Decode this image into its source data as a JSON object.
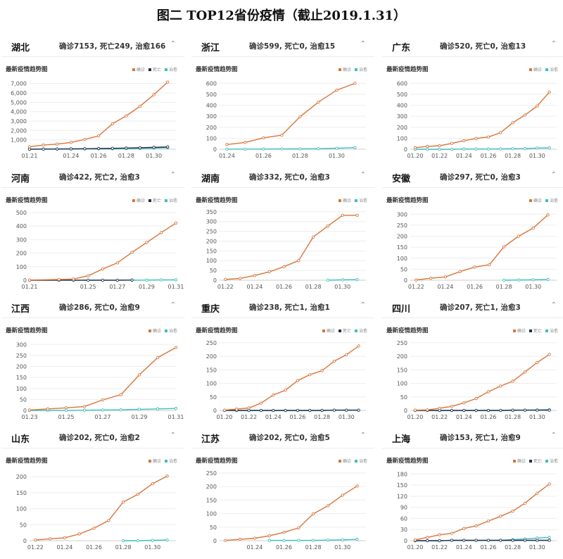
{
  "title": "图二 TOP12省份疫情（截止2019.1.31）",
  "subtitle": "最新疫情趋势图",
  "legend_labels": {
    "confirmed": "确诊",
    "deaths": "死亡",
    "cured": "治愈"
  },
  "colors": {
    "confirmed": "#d9743a",
    "deaths": "#1e2f4f",
    "cured": "#3dbfbf"
  },
  "collapse_icon": "chevron-up-icon",
  "chart_data": [
    {
      "type": "line",
      "province": "湖北",
      "stats": "确诊7153, 死亡249, 治愈166",
      "x_ticks": [
        "01.21",
        "01.24",
        "01.26",
        "01.28",
        "01.30"
      ],
      "y_ticks": [
        "1,000",
        "2,000",
        "3,000",
        "4,000",
        "5,000",
        "6,000",
        "7,000"
      ],
      "ylim": [
        0,
        7500
      ],
      "x_range": [
        21,
        31.6
      ],
      "legend": [
        "confirmed",
        "deaths",
        "cured"
      ],
      "series": [
        {
          "key": "confirmed",
          "x": [
            21,
            22,
            23,
            24,
            25,
            26,
            27,
            28,
            29,
            30,
            31
          ],
          "y": [
            270,
            444,
            549,
            729,
            1052,
            1423,
            2714,
            3554,
            4586,
            5806,
            7153
          ]
        },
        {
          "key": "deaths",
          "x": [
            21,
            22,
            23,
            24,
            25,
            26,
            27,
            28,
            29,
            30,
            31
          ],
          "y": [
            6,
            17,
            24,
            39,
            52,
            76,
            100,
            125,
            162,
            204,
            249
          ]
        },
        {
          "key": "cured",
          "x": [
            21,
            22,
            23,
            24,
            25,
            26,
            27,
            28,
            29,
            30,
            31
          ],
          "y": [
            25,
            28,
            31,
            32,
            42,
            44,
            47,
            80,
            90,
            116,
            166
          ]
        }
      ]
    },
    {
      "type": "line",
      "province": "浙江",
      "stats": "确诊599, 死亡0, 治愈15",
      "x_ticks": [
        "01.24",
        "01.26",
        "01.28",
        "01.30"
      ],
      "y_ticks": [
        "0",
        "100",
        "200",
        "300",
        "400",
        "500",
        "600"
      ],
      "ylim": [
        0,
        640
      ],
      "x_range": [
        23.6,
        31.6
      ],
      "legend": [
        "confirmed",
        "cured"
      ],
      "series": [
        {
          "key": "confirmed",
          "x": [
            24,
            25,
            26,
            27,
            28,
            29,
            30,
            31
          ],
          "y": [
            43,
            62,
            104,
            128,
            296,
            428,
            537,
            599
          ]
        },
        {
          "key": "cured",
          "x": [
            24,
            25,
            26,
            27,
            28,
            29,
            30,
            31
          ],
          "y": [
            1,
            1,
            2,
            3,
            3,
            5,
            9,
            15
          ]
        }
      ]
    },
    {
      "type": "line",
      "province": "广东",
      "stats": "确诊520, 死亡0, 治愈13",
      "x_ticks": [
        "01.20",
        "01.22",
        "01.24",
        "01.26",
        "01.28",
        "01.30"
      ],
      "y_ticks": [
        "0",
        "100",
        "200",
        "300",
        "400",
        "500",
        "600"
      ],
      "ylim": [
        0,
        640
      ],
      "x_range": [
        19.6,
        31.6
      ],
      "legend": [
        "confirmed",
        "cured"
      ],
      "series": [
        {
          "key": "confirmed",
          "x": [
            20,
            21,
            22,
            23,
            24,
            25,
            26,
            27,
            28,
            29,
            30,
            31
          ],
          "y": [
            14,
            26,
            32,
            53,
            78,
            98,
            111,
            151,
            241,
            311,
            393,
            520
          ]
        },
        {
          "key": "cured",
          "x": [
            20,
            21,
            22,
            23,
            24,
            25,
            26,
            27,
            28,
            29,
            30,
            31
          ],
          "y": [
            0,
            0,
            0,
            0,
            2,
            2,
            2,
            3,
            5,
            6,
            11,
            13
          ]
        }
      ]
    },
    {
      "type": "line",
      "province": "河南",
      "stats": "确诊422, 死亡2, 治愈3",
      "x_ticks": [
        "01.21",
        "01.25",
        "01.27",
        "01.29",
        "01.31"
      ],
      "y_ticks": [
        "0",
        "100",
        "200",
        "300",
        "400",
        "500"
      ],
      "ylim": [
        0,
        520
      ],
      "x_range": [
        21,
        31
      ],
      "legend": [
        "confirmed",
        "deaths",
        "cured"
      ],
      "series": [
        {
          "key": "confirmed",
          "x": [
            21,
            23,
            24,
            25,
            26,
            27,
            28,
            29,
            30,
            31
          ],
          "y": [
            1,
            5,
            9,
            32,
            83,
            128,
            206,
            278,
            352,
            422
          ]
        },
        {
          "key": "deaths",
          "x": [
            21,
            23,
            24,
            25,
            26,
            27,
            28
          ],
          "y": [
            0,
            0,
            0,
            0,
            0,
            0,
            1
          ]
        },
        {
          "key": "cured",
          "x": [
            28,
            29,
            30,
            31
          ],
          "y": [
            0,
            1,
            2,
            3
          ]
        }
      ]
    },
    {
      "type": "line",
      "province": "湖南",
      "stats": "确诊332, 死亡0, 治愈3",
      "x_ticks": [
        "01.22",
        "01.24",
        "01.26",
        "01.28",
        "01.30"
      ],
      "y_ticks": [
        "0",
        "50",
        "100",
        "150",
        "200",
        "250",
        "300",
        "350"
      ],
      "ylim": [
        0,
        360
      ],
      "x_range": [
        21.6,
        31.6
      ],
      "legend": [
        "confirmed",
        "cured"
      ],
      "series": [
        {
          "key": "confirmed",
          "x": [
            22,
            23,
            24,
            25,
            26,
            27,
            28,
            29,
            30,
            31
          ],
          "y": [
            4,
            9,
            24,
            43,
            69,
            100,
            221,
            277,
            332,
            332
          ]
        },
        {
          "key": "cured",
          "x": [
            29,
            30,
            31
          ],
          "y": [
            0,
            2,
            3
          ]
        }
      ]
    },
    {
      "type": "line",
      "province": "安徽",
      "stats": "确诊297, 死亡0, 治愈3",
      "x_ticks": [
        "01.22",
        "01.24",
        "01.26",
        "01.28",
        "01.30"
      ],
      "y_ticks": [
        "0",
        "50",
        "100",
        "150",
        "200",
        "250",
        "300"
      ],
      "ylim": [
        0,
        320
      ],
      "x_range": [
        21.6,
        31.6
      ],
      "legend": [
        "confirmed",
        "cured"
      ],
      "series": [
        {
          "key": "confirmed",
          "x": [
            22,
            23,
            24,
            25,
            26,
            27,
            28,
            29,
            30,
            31
          ],
          "y": [
            1,
            9,
            15,
            39,
            60,
            70,
            152,
            200,
            237,
            297
          ]
        },
        {
          "key": "cured",
          "x": [
            28,
            29,
            30,
            31
          ],
          "y": [
            0,
            1,
            2,
            3
          ]
        }
      ]
    },
    {
      "type": "line",
      "province": "江西",
      "stats": "确诊286, 死亡0, 治愈9",
      "x_ticks": [
        "01.23",
        "01.25",
        "01.27",
        "01.29",
        "01.31"
      ],
      "y_ticks": [
        "0",
        "50",
        "100",
        "150",
        "200",
        "250",
        "300"
      ],
      "ylim": [
        0,
        320
      ],
      "x_range": [
        23,
        31
      ],
      "legend": [
        "confirmed",
        "cured"
      ],
      "series": [
        {
          "key": "confirmed",
          "x": [
            23,
            24,
            25,
            26,
            27,
            28,
            29,
            30,
            31
          ],
          "y": [
            2,
            7,
            12,
            18,
            48,
            72,
            162,
            240,
            286
          ]
        },
        {
          "key": "cured",
          "x": [
            23,
            24,
            25,
            26,
            27,
            28,
            29,
            30,
            31
          ],
          "y": [
            0,
            0,
            0,
            1,
            2,
            3,
            5,
            7,
            9
          ]
        }
      ]
    },
    {
      "type": "line",
      "province": "重庆",
      "stats": "确诊238, 死亡1, 治愈1",
      "x_ticks": [
        "01.20",
        "01.22",
        "01.24",
        "01.26",
        "01.28",
        "01.30"
      ],
      "y_ticks": [
        "0",
        "50",
        "100",
        "150",
        "200",
        "250"
      ],
      "ylim": [
        0,
        260
      ],
      "x_range": [
        19.6,
        31.6
      ],
      "legend": [
        "confirmed",
        "deaths",
        "cured"
      ],
      "series": [
        {
          "key": "confirmed",
          "x": [
            20,
            21,
            22,
            23,
            24,
            25,
            26,
            27,
            28,
            29,
            30,
            31
          ],
          "y": [
            1,
            5,
            9,
            27,
            57,
            75,
            110,
            132,
            147,
            182,
            206,
            238
          ]
        },
        {
          "key": "deaths",
          "x": [
            20,
            21,
            22,
            23,
            24,
            25,
            26,
            27,
            28,
            29,
            30,
            31
          ],
          "y": [
            0,
            0,
            0,
            0,
            0,
            0,
            0,
            0,
            0,
            1,
            1,
            1
          ]
        },
        {
          "key": "cured",
          "x": [
            20,
            21,
            22,
            23,
            24,
            25,
            26,
            27,
            28,
            29,
            30,
            31
          ],
          "y": [
            0,
            0,
            0,
            0,
            0,
            0,
            0,
            0,
            0,
            1,
            1,
            1
          ]
        }
      ]
    },
    {
      "type": "line",
      "province": "四川",
      "stats": "确诊207, 死亡1, 治愈3",
      "x_ticks": [
        "01.20",
        "01.22",
        "01.24",
        "01.26",
        "01.28",
        "01.30"
      ],
      "y_ticks": [
        "0",
        "50",
        "100",
        "150",
        "200",
        "250"
      ],
      "ylim": [
        0,
        260
      ],
      "x_range": [
        19.6,
        31.6
      ],
      "legend": [
        "confirmed",
        "deaths",
        "cured"
      ],
      "series": [
        {
          "key": "confirmed",
          "x": [
            20,
            21,
            22,
            23,
            24,
            25,
            26,
            27,
            28,
            29,
            30,
            31
          ],
          "y": [
            1,
            2,
            8,
            15,
            28,
            44,
            69,
            90,
            108,
            142,
            177,
            207
          ]
        },
        {
          "key": "deaths",
          "x": [
            20,
            21,
            22,
            23,
            24,
            25,
            26,
            27,
            28,
            29,
            30,
            31
          ],
          "y": [
            0,
            0,
            0,
            0,
            0,
            0,
            0,
            0,
            1,
            1,
            1,
            1
          ]
        },
        {
          "key": "cured",
          "x": [
            20,
            21,
            22,
            23,
            24,
            25,
            26,
            27,
            28,
            29,
            30,
            31
          ],
          "y": [
            0,
            0,
            0,
            0,
            0,
            0,
            0,
            0,
            0,
            1,
            2,
            3
          ]
        }
      ]
    },
    {
      "type": "line",
      "province": "山东",
      "stats": "确诊202, 死亡0, 治愈2",
      "x_ticks": [
        "01.22",
        "01.24",
        "01.26",
        "01.28",
        "01.30"
      ],
      "y_ticks": [
        "0",
        "50",
        "100",
        "150",
        "200"
      ],
      "ylim": [
        0,
        220
      ],
      "x_range": [
        21.6,
        31.6
      ],
      "legend": [
        "confirmed",
        "cured"
      ],
      "series": [
        {
          "key": "confirmed",
          "x": [
            22,
            23,
            24,
            25,
            26,
            27,
            28,
            29,
            30,
            31
          ],
          "y": [
            2,
            6,
            9,
            21,
            39,
            63,
            121,
            145,
            178,
            202
          ]
        },
        {
          "key": "cured",
          "x": [
            28,
            29,
            30,
            31
          ],
          "y": [
            0,
            0,
            1,
            2
          ]
        }
      ]
    },
    {
      "type": "line",
      "province": "江苏",
      "stats": "确诊202, 死亡0, 治愈5",
      "x_ticks": [
        "01.24",
        "01.26",
        "01.28",
        "01.30"
      ],
      "y_ticks": [
        "0",
        "50",
        "100",
        "150",
        "200",
        "250"
      ],
      "ylim": [
        0,
        260
      ],
      "x_range": [
        21.6,
        31.6
      ],
      "legend": [
        "confirmed",
        "cured"
      ],
      "series": [
        {
          "key": "confirmed",
          "x": [
            22,
            23,
            24,
            25,
            26,
            27,
            28,
            29,
            30,
            31
          ],
          "y": [
            1,
            5,
            9,
            18,
            31,
            47,
            99,
            129,
            168,
            202
          ]
        },
        {
          "key": "cured",
          "x": [
            25,
            26,
            27,
            28,
            29,
            30,
            31
          ],
          "y": [
            1,
            1,
            1,
            1,
            2,
            3,
            5
          ]
        }
      ]
    },
    {
      "type": "line",
      "province": "上海",
      "stats": "确诊153, 死亡1, 治愈9",
      "x_ticks": [
        "01.20",
        "01.22",
        "01.24",
        "01.26",
        "01.28",
        "01.30"
      ],
      "y_ticks": [
        "0",
        "30",
        "60",
        "90",
        "120",
        "150",
        "180"
      ],
      "ylim": [
        0,
        190
      ],
      "x_range": [
        19.6,
        31.6
      ],
      "legend": [
        "confirmed",
        "deaths",
        "cured"
      ],
      "series": [
        {
          "key": "confirmed",
          "x": [
            20,
            21,
            22,
            23,
            24,
            25,
            26,
            27,
            28,
            29,
            30,
            31
          ],
          "y": [
            2,
            9,
            16,
            20,
            33,
            40,
            53,
            66,
            80,
            101,
            128,
            153
          ]
        },
        {
          "key": "deaths",
          "x": [
            20,
            21,
            22,
            23,
            24,
            25,
            26,
            27,
            28,
            29,
            30,
            31
          ],
          "y": [
            0,
            0,
            0,
            1,
            1,
            1,
            1,
            1,
            1,
            1,
            1,
            1
          ]
        },
        {
          "key": "cured",
          "x": [
            20,
            21,
            22,
            23,
            24,
            25,
            26,
            27,
            28,
            29,
            30,
            31
          ],
          "y": [
            0,
            0,
            0,
            1,
            1,
            1,
            1,
            1,
            3,
            5,
            7,
            9
          ]
        }
      ]
    }
  ]
}
